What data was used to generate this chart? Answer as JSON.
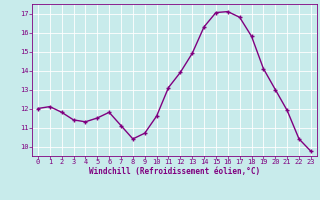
{
  "x": [
    0,
    1,
    2,
    3,
    4,
    5,
    6,
    7,
    8,
    9,
    10,
    11,
    12,
    13,
    14,
    15,
    16,
    17,
    18,
    19,
    20,
    21,
    22,
    23
  ],
  "y": [
    12.0,
    12.1,
    11.8,
    11.4,
    11.3,
    11.5,
    11.8,
    11.1,
    10.4,
    10.7,
    11.6,
    13.1,
    13.9,
    14.9,
    16.3,
    17.05,
    17.1,
    16.8,
    15.8,
    14.1,
    13.0,
    11.9,
    10.4,
    9.75
  ],
  "xlim": [
    -0.5,
    23.5
  ],
  "ylim": [
    9.5,
    17.5
  ],
  "yticks": [
    10,
    11,
    12,
    13,
    14,
    15,
    16,
    17
  ],
  "xticks": [
    0,
    1,
    2,
    3,
    4,
    5,
    6,
    7,
    8,
    9,
    10,
    11,
    12,
    13,
    14,
    15,
    16,
    17,
    18,
    19,
    20,
    21,
    22,
    23
  ],
  "xlabel": "Windchill (Refroidissement éolien,°C)",
  "line_color": "#800080",
  "marker": "+",
  "bg_color": "#c8ebeb",
  "grid_color": "#ffffff",
  "tick_color": "#800080",
  "label_color": "#800080",
  "xlabel_fontsize": 5.5,
  "tick_fontsize": 5,
  "line_width": 1.0,
  "marker_size": 3,
  "marker_edge_width": 1.0
}
